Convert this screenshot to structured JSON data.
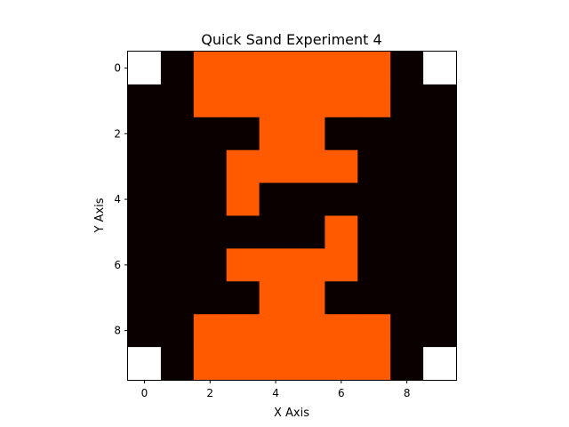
{
  "chart_data": {
    "type": "heatmap",
    "title": "Quick Sand Experiment 4",
    "xlabel": "X Axis",
    "ylabel": "Y Axis",
    "x_ticks": [
      0,
      2,
      4,
      6,
      8
    ],
    "y_ticks": [
      0,
      2,
      4,
      6,
      8
    ],
    "xlim": [
      -0.5,
      9.5
    ],
    "ylim": [
      9.5,
      -0.5
    ],
    "grid": false,
    "colormap": {
      "0": "#0a0000",
      "1": "#ff5a00"
    },
    "masked_color": "#ffffff",
    "values": [
      [
        null,
        0,
        1,
        1,
        1,
        1,
        1,
        1,
        0,
        null
      ],
      [
        0,
        0,
        1,
        1,
        1,
        1,
        1,
        1,
        0,
        0
      ],
      [
        0,
        0,
        0,
        0,
        1,
        1,
        0,
        0,
        0,
        0
      ],
      [
        0,
        0,
        0,
        1,
        1,
        1,
        1,
        0,
        0,
        0
      ],
      [
        0,
        0,
        0,
        1,
        0,
        0,
        0,
        0,
        0,
        0
      ],
      [
        0,
        0,
        0,
        0,
        0,
        0,
        1,
        0,
        0,
        0
      ],
      [
        0,
        0,
        0,
        1,
        1,
        1,
        1,
        0,
        0,
        0
      ],
      [
        0,
        0,
        0,
        0,
        1,
        1,
        0,
        0,
        0,
        0
      ],
      [
        0,
        0,
        1,
        1,
        1,
        1,
        1,
        1,
        0,
        0
      ],
      [
        null,
        0,
        1,
        1,
        1,
        1,
        1,
        1,
        0,
        null
      ]
    ]
  }
}
